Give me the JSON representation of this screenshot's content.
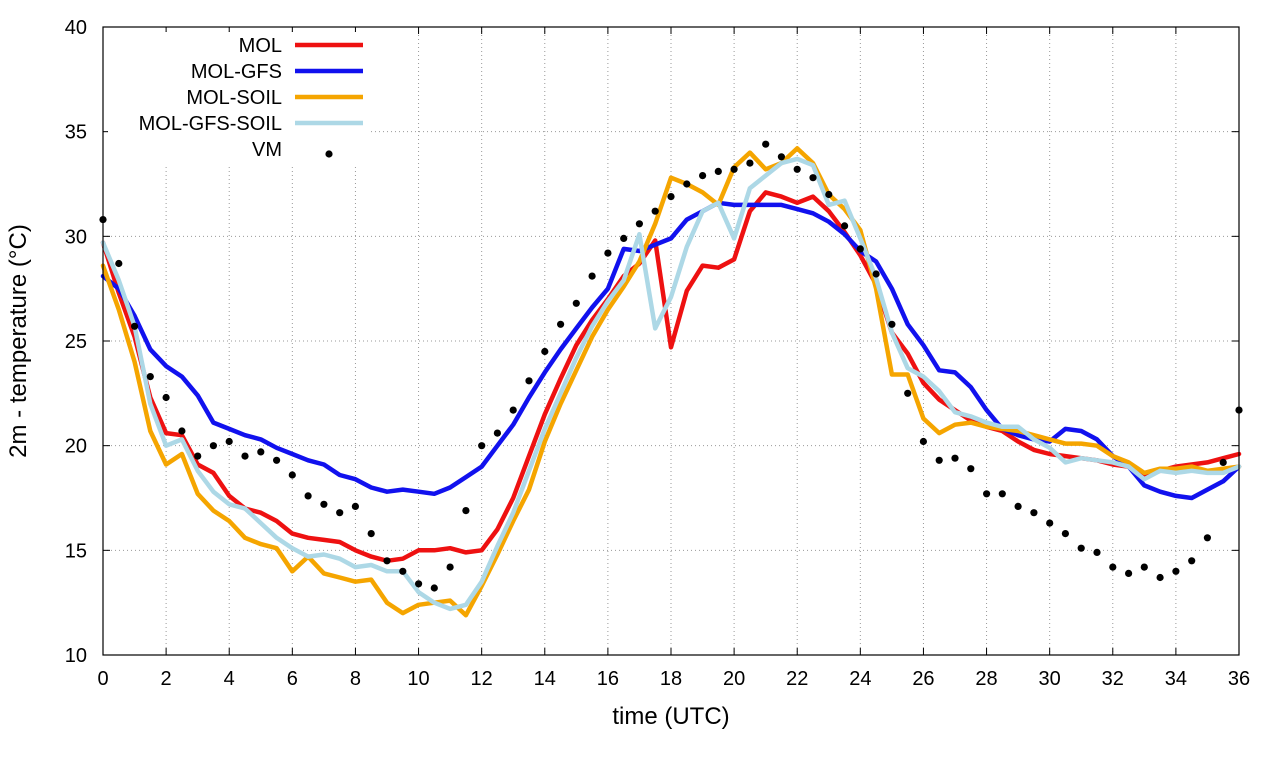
{
  "chart_data": {
    "type": "line",
    "xlabel": "time (UTC)",
    "ylabel": "2m - temperature (°C)",
    "xlim": [
      0,
      36
    ],
    "ylim": [
      10,
      40
    ],
    "xticks": [
      0,
      2,
      4,
      6,
      8,
      10,
      12,
      14,
      16,
      18,
      20,
      22,
      24,
      26,
      28,
      30,
      32,
      34,
      36
    ],
    "yticks": [
      10,
      15,
      20,
      25,
      30,
      35,
      40
    ],
    "grid": true,
    "grid_style": "dotted",
    "legend_position": "top-left",
    "series": [
      {
        "name": "MOL",
        "style": "line",
        "color": "#ee1111",
        "x": [
          0,
          0.5,
          1,
          1.5,
          2,
          2.5,
          3,
          3.5,
          4,
          4.5,
          5,
          5.5,
          6,
          6.5,
          7,
          7.5,
          8,
          8.5,
          9,
          9.5,
          10,
          10.5,
          11,
          11.5,
          12,
          12.5,
          13,
          13.5,
          14,
          14.5,
          15,
          15.5,
          16,
          16.5,
          17,
          17.5,
          18,
          18.5,
          19,
          19.5,
          20,
          20.5,
          21,
          21.5,
          22,
          22.5,
          23,
          23.5,
          24,
          24.5,
          25,
          25.5,
          26,
          26.5,
          27,
          27.5,
          28,
          28.5,
          29,
          29.5,
          30,
          30.5,
          31,
          31.5,
          32,
          32.5,
          33,
          33.5,
          34,
          34.5,
          35,
          35.5,
          36
        ],
        "y": [
          29.7,
          27.3,
          25.2,
          22.3,
          20.6,
          20.5,
          19.1,
          18.7,
          17.6,
          17.0,
          16.8,
          16.4,
          15.8,
          15.6,
          15.5,
          15.4,
          15.0,
          14.7,
          14.5,
          14.6,
          15.0,
          15.0,
          15.1,
          14.9,
          15.0,
          16.0,
          17.5,
          19.5,
          21.5,
          23.2,
          24.8,
          26.0,
          27.0,
          28.1,
          28.7,
          29.8,
          24.7,
          27.4,
          28.6,
          28.5,
          28.9,
          31.2,
          32.1,
          31.9,
          31.6,
          31.9,
          31.2,
          30.2,
          29.1,
          27.7,
          25.4,
          24.4,
          23.0,
          22.2,
          21.7,
          21.2,
          20.9,
          20.7,
          20.2,
          19.8,
          19.6,
          19.5,
          19.4,
          19.3,
          19.1,
          19.0,
          18.5,
          18.8,
          19.0,
          19.1,
          19.2,
          19.4,
          19.6
        ]
      },
      {
        "name": "MOL-GFS",
        "style": "line",
        "color": "#1111ee",
        "x": [
          0,
          0.5,
          1,
          1.5,
          2,
          2.5,
          3,
          3.5,
          4,
          4.5,
          5,
          5.5,
          6,
          6.5,
          7,
          7.5,
          8,
          8.5,
          9,
          9.5,
          10,
          10.5,
          11,
          11.5,
          12,
          12.5,
          13,
          13.5,
          14,
          14.5,
          15,
          15.5,
          16,
          16.5,
          17,
          17.5,
          18,
          18.5,
          19,
          19.5,
          20,
          20.5,
          21,
          21.5,
          22,
          22.5,
          23,
          23.5,
          24,
          24.5,
          25,
          25.5,
          26,
          26.5,
          27,
          27.5,
          28,
          28.5,
          29,
          29.5,
          30,
          30.5,
          31,
          31.5,
          32,
          32.5,
          33,
          33.5,
          34,
          34.5,
          35,
          35.5,
          36
        ],
        "y": [
          28.1,
          27.5,
          26.2,
          24.6,
          23.8,
          23.3,
          22.4,
          21.1,
          20.8,
          20.5,
          20.3,
          19.9,
          19.6,
          19.3,
          19.1,
          18.6,
          18.4,
          18.0,
          17.8,
          17.9,
          17.8,
          17.7,
          18.0,
          18.5,
          19.0,
          20.0,
          21.0,
          22.3,
          23.5,
          24.6,
          25.6,
          26.6,
          27.5,
          29.4,
          29.3,
          29.6,
          29.9,
          30.8,
          31.2,
          31.6,
          31.5,
          31.5,
          31.5,
          31.5,
          31.3,
          31.1,
          30.7,
          30.1,
          29.3,
          28.8,
          27.5,
          25.8,
          24.8,
          23.6,
          23.5,
          22.8,
          21.7,
          20.8,
          20.5,
          20.3,
          20.2,
          20.8,
          20.7,
          20.3,
          19.5,
          19.0,
          18.1,
          17.8,
          17.6,
          17.5,
          17.9,
          18.3,
          19.0
        ]
      },
      {
        "name": "MOL-SOIL",
        "style": "line",
        "color": "#f5a500",
        "x": [
          0,
          0.5,
          1,
          1.5,
          2,
          2.5,
          3,
          3.5,
          4,
          4.5,
          5,
          5.5,
          6,
          6.5,
          7,
          7.5,
          8,
          8.5,
          9,
          9.5,
          10,
          10.5,
          11,
          11.5,
          12,
          12.5,
          13,
          13.5,
          14,
          14.5,
          15,
          15.5,
          16,
          16.5,
          17,
          17.5,
          18,
          18.5,
          19,
          19.5,
          20,
          20.5,
          21,
          21.5,
          22,
          22.5,
          23,
          23.5,
          24,
          24.5,
          25,
          25.5,
          26,
          26.5,
          27,
          27.5,
          28,
          28.5,
          29,
          29.5,
          30,
          30.5,
          31,
          31.5,
          32,
          32.5,
          33,
          33.5,
          34,
          34.5,
          35,
          35.5,
          36
        ],
        "y": [
          28.6,
          26.5,
          24.0,
          20.7,
          19.1,
          19.6,
          17.7,
          16.9,
          16.4,
          15.6,
          15.3,
          15.1,
          14.0,
          14.7,
          13.9,
          13.7,
          13.5,
          13.6,
          12.5,
          12.0,
          12.4,
          12.5,
          12.6,
          11.9,
          13.3,
          14.8,
          16.4,
          17.9,
          20.2,
          22.0,
          23.6,
          25.2,
          26.5,
          27.6,
          28.8,
          30.6,
          32.8,
          32.5,
          32.1,
          31.5,
          33.3,
          34.0,
          33.2,
          33.5,
          34.2,
          33.5,
          32.0,
          31.3,
          30.3,
          27.5,
          23.4,
          23.4,
          21.3,
          20.6,
          21.0,
          21.1,
          20.9,
          20.8,
          20.7,
          20.5,
          20.3,
          20.1,
          20.1,
          20.0,
          19.5,
          19.2,
          18.7,
          18.9,
          18.9,
          19.0,
          18.8,
          18.9,
          19.0
        ]
      },
      {
        "name": "MOL-GFS-SOIL",
        "style": "line",
        "color": "#add8e6",
        "x": [
          0,
          0.5,
          1,
          1.5,
          2,
          2.5,
          3,
          3.5,
          4,
          4.5,
          5,
          5.5,
          6,
          6.5,
          7,
          7.5,
          8,
          8.5,
          9,
          9.5,
          10,
          10.5,
          11,
          11.5,
          12,
          12.5,
          13,
          13.5,
          14,
          14.5,
          15,
          15.5,
          16,
          16.5,
          17,
          17.5,
          18,
          18.5,
          19,
          19.5,
          20,
          20.5,
          21,
          21.5,
          22,
          22.5,
          23,
          23.5,
          24,
          24.5,
          25,
          25.5,
          26,
          26.5,
          27,
          27.5,
          28,
          28.5,
          29,
          29.5,
          30,
          30.5,
          31,
          31.5,
          32,
          32.5,
          33,
          33.5,
          34,
          34.5,
          35,
          35.5,
          36
        ],
        "y": [
          29.7,
          27.9,
          25.7,
          22.0,
          20.0,
          20.3,
          18.8,
          17.8,
          17.2,
          17.0,
          16.3,
          15.6,
          15.1,
          14.7,
          14.8,
          14.6,
          14.2,
          14.3,
          14.0,
          14.0,
          13.0,
          12.5,
          12.2,
          12.4,
          13.5,
          15.2,
          16.8,
          18.8,
          20.8,
          22.5,
          24.2,
          25.7,
          26.9,
          27.9,
          30.1,
          25.6,
          27.1,
          29.5,
          31.2,
          31.6,
          29.9,
          32.3,
          32.9,
          33.5,
          33.7,
          33.4,
          31.5,
          31.7,
          29.9,
          28.0,
          25.4,
          23.7,
          23.3,
          22.6,
          21.6,
          21.4,
          21.1,
          20.9,
          20.9,
          20.3,
          19.9,
          19.2,
          19.4,
          19.3,
          19.2,
          19.0,
          18.4,
          18.8,
          18.7,
          18.8,
          18.7,
          18.7,
          19.0
        ]
      },
      {
        "name": "VM",
        "style": "points",
        "color": "#000000",
        "x": [
          0,
          0.5,
          1,
          1.5,
          2,
          2.5,
          3,
          3.5,
          4,
          4.5,
          5,
          5.5,
          6,
          6.5,
          7,
          7.5,
          8,
          8.5,
          9,
          9.5,
          10,
          10.5,
          11,
          11.5,
          12,
          12.5,
          13,
          13.5,
          14,
          14.5,
          15,
          15.5,
          16,
          16.5,
          17,
          17.5,
          18,
          18.5,
          19,
          19.5,
          20,
          20.5,
          21,
          21.5,
          22,
          22.5,
          23,
          23.5,
          24,
          24.5,
          25,
          25.5,
          26,
          26.5,
          27,
          27.5,
          28,
          28.5,
          29,
          29.5,
          30,
          30.5,
          31,
          31.5,
          32,
          32.5,
          33,
          33.5,
          34,
          34.5,
          35,
          35.5,
          36
        ],
        "y": [
          30.8,
          28.7,
          25.7,
          23.3,
          22.3,
          20.7,
          19.5,
          20.0,
          20.2,
          19.5,
          19.7,
          19.3,
          18.6,
          17.6,
          17.2,
          16.8,
          17.1,
          15.8,
          14.5,
          14.0,
          13.4,
          13.2,
          14.2,
          16.9,
          20.0,
          20.6,
          21.7,
          23.1,
          24.5,
          25.8,
          26.8,
          28.1,
          29.2,
          29.9,
          30.6,
          31.2,
          31.9,
          32.5,
          32.9,
          33.1,
          33.2,
          33.5,
          34.4,
          33.8,
          33.2,
          32.8,
          32.0,
          30.5,
          29.4,
          28.2,
          25.8,
          22.5,
          20.2,
          19.3,
          19.4,
          18.9,
          17.7,
          17.7,
          17.1,
          16.8,
          16.3,
          15.8,
          15.1,
          14.9,
          14.2,
          13.9,
          14.2,
          13.7,
          14.0,
          14.5,
          15.6,
          19.2,
          21.7
        ]
      }
    ]
  }
}
